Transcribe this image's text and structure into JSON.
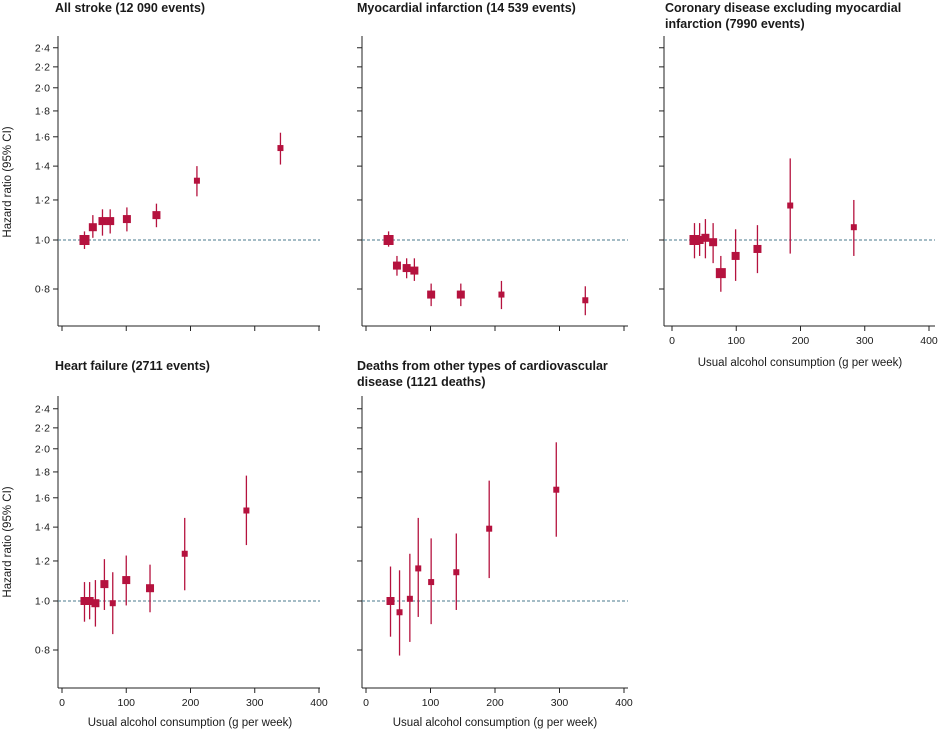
{
  "figure": {
    "colors": {
      "marker": "#b5123e",
      "reference_line": "#4a7a8c",
      "axis": "#222222"
    }
  },
  "y_axis_label": "Hazard ratio (95% CI)",
  "x_axis_label": "Usual alcohol consumption (g per week)",
  "chart_data": [
    {
      "id": "stroke",
      "type": "scatter",
      "title": "All stroke (12 090 events)",
      "ylabel": "Hazard ratio (95% CI)",
      "xlabel": "",
      "y_scale": "log",
      "ylim": [
        0.7,
        2.45
      ],
      "xlim": [
        0,
        400
      ],
      "y_ticks": [
        "0·8",
        "1·0",
        "1·2",
        "1·4",
        "1·6",
        "1·8",
        "2·0",
        "2·2",
        "2·4"
      ],
      "x_tick_labels": [],
      "reference_line": 1.0,
      "points": [
        {
          "x": 35,
          "hr": 1.0,
          "lo": 0.96,
          "hi": 1.04,
          "w": 3
        },
        {
          "x": 48,
          "hr": 1.06,
          "lo": 1.01,
          "hi": 1.12,
          "w": 2
        },
        {
          "x": 63,
          "hr": 1.09,
          "lo": 1.02,
          "hi": 1.15,
          "w": 2
        },
        {
          "x": 75,
          "hr": 1.09,
          "lo": 1.03,
          "hi": 1.15,
          "w": 2
        },
        {
          "x": 101,
          "hr": 1.1,
          "lo": 1.04,
          "hi": 1.16,
          "w": 2
        },
        {
          "x": 147,
          "hr": 1.12,
          "lo": 1.06,
          "hi": 1.18,
          "w": 2
        },
        {
          "x": 210,
          "hr": 1.31,
          "lo": 1.22,
          "hi": 1.4,
          "w": 1
        },
        {
          "x": 340,
          "hr": 1.52,
          "lo": 1.41,
          "hi": 1.63,
          "w": 1
        }
      ]
    },
    {
      "id": "mi",
      "type": "scatter",
      "title": "Myocardial infarction (14 539 events)",
      "ylabel": "",
      "xlabel": "",
      "y_scale": "log",
      "ylim": [
        0.7,
        2.45
      ],
      "xlim": [
        0,
        400
      ],
      "y_ticks": [
        "0·8",
        "1·0",
        "1·2",
        "1·4",
        "1·6",
        "1·8",
        "2·0",
        "2·2",
        "2·4"
      ],
      "x_tick_labels": [],
      "reference_line": 1.0,
      "points": [
        {
          "x": 35,
          "hr": 1.0,
          "lo": 0.97,
          "hi": 1.04,
          "w": 3
        },
        {
          "x": 48,
          "hr": 0.89,
          "lo": 0.85,
          "hi": 0.93,
          "w": 2
        },
        {
          "x": 63,
          "hr": 0.88,
          "lo": 0.84,
          "hi": 0.92,
          "w": 2
        },
        {
          "x": 75,
          "hr": 0.87,
          "lo": 0.83,
          "hi": 0.92,
          "w": 2
        },
        {
          "x": 101,
          "hr": 0.78,
          "lo": 0.74,
          "hi": 0.82,
          "w": 2
        },
        {
          "x": 147,
          "hr": 0.78,
          "lo": 0.74,
          "hi": 0.82,
          "w": 2
        },
        {
          "x": 210,
          "hr": 0.78,
          "lo": 0.73,
          "hi": 0.83,
          "w": 1
        },
        {
          "x": 340,
          "hr": 0.76,
          "lo": 0.71,
          "hi": 0.81,
          "w": 1
        }
      ]
    },
    {
      "id": "coronary",
      "type": "scatter",
      "title": "Coronary disease excluding myocardial infarction (7990 events)",
      "ylabel": "",
      "xlabel": "Usual alcohol consumption (g per week)",
      "y_scale": "log",
      "ylim": [
        0.7,
        2.45
      ],
      "xlim": [
        0,
        400
      ],
      "y_ticks": [
        "0·8",
        "1·0",
        "1·2",
        "1·4",
        "1·6",
        "1·8",
        "2·0",
        "2·2",
        "2·4"
      ],
      "x_ticks": [
        0,
        100,
        200,
        300,
        400
      ],
      "x_tick_labels": [
        "0",
        "100",
        "200",
        "300",
        "400"
      ],
      "reference_line": 1.0,
      "points": [
        {
          "x": 35,
          "hr": 1.0,
          "lo": 0.92,
          "hi": 1.08,
          "w": 3
        },
        {
          "x": 43,
          "hr": 1.0,
          "lo": 0.93,
          "hi": 1.08,
          "w": 2
        },
        {
          "x": 52,
          "hr": 1.01,
          "lo": 0.92,
          "hi": 1.1,
          "w": 2
        },
        {
          "x": 64,
          "hr": 0.99,
          "lo": 0.9,
          "hi": 1.08,
          "w": 2
        },
        {
          "x": 76,
          "hr": 0.86,
          "lo": 0.79,
          "hi": 0.93,
          "w": 3
        },
        {
          "x": 99,
          "hr": 0.93,
          "lo": 0.83,
          "hi": 1.05,
          "w": 2
        },
        {
          "x": 133,
          "hr": 0.96,
          "lo": 0.86,
          "hi": 1.07,
          "w": 2
        },
        {
          "x": 184,
          "hr": 1.17,
          "lo": 0.94,
          "hi": 1.45,
          "w": 1
        },
        {
          "x": 283,
          "hr": 1.06,
          "lo": 0.93,
          "hi": 1.2,
          "w": 1
        }
      ]
    },
    {
      "id": "hf",
      "type": "scatter",
      "title": "Heart failure (2711 events)",
      "ylabel": "Hazard ratio (95% CI)",
      "xlabel": "Usual alcohol consumption (g per week)",
      "y_scale": "log",
      "ylim": [
        0.7,
        2.45
      ],
      "xlim": [
        0,
        400
      ],
      "y_ticks": [
        "0·8",
        "1·0",
        "1·2",
        "1·4",
        "1·6",
        "1·8",
        "2·0",
        "2·2",
        "2·4"
      ],
      "x_ticks": [
        0,
        100,
        200,
        300,
        400
      ],
      "x_tick_labels": [
        "0",
        "100",
        "200",
        "300",
        "400"
      ],
      "reference_line": 1.0,
      "points": [
        {
          "x": 35,
          "hr": 1.0,
          "lo": 0.91,
          "hi": 1.09,
          "w": 2
        },
        {
          "x": 43,
          "hr": 1.0,
          "lo": 0.92,
          "hi": 1.09,
          "w": 2
        },
        {
          "x": 52,
          "hr": 0.99,
          "lo": 0.89,
          "hi": 1.1,
          "w": 2
        },
        {
          "x": 66,
          "hr": 1.08,
          "lo": 0.96,
          "hi": 1.21,
          "w": 2
        },
        {
          "x": 79,
          "hr": 0.99,
          "lo": 0.86,
          "hi": 1.14,
          "w": 1
        },
        {
          "x": 100,
          "hr": 1.1,
          "lo": 0.98,
          "hi": 1.23,
          "w": 2
        },
        {
          "x": 137,
          "hr": 1.06,
          "lo": 0.95,
          "hi": 1.18,
          "w": 2
        },
        {
          "x": 191,
          "hr": 1.24,
          "lo": 1.05,
          "hi": 1.46,
          "w": 1
        },
        {
          "x": 287,
          "hr": 1.51,
          "lo": 1.29,
          "hi": 1.77,
          "w": 1
        }
      ]
    },
    {
      "id": "othercvd",
      "type": "scatter",
      "title": "Deaths from other types of cardiovascular disease (1121 deaths)",
      "ylabel": "",
      "xlabel": "Usual alcohol consumption (g per week)",
      "y_scale": "log",
      "ylim": [
        0.7,
        2.45
      ],
      "xlim": [
        0,
        400
      ],
      "y_ticks": [
        "0·8",
        "1·0",
        "1·2",
        "1·4",
        "1·6",
        "1·8",
        "2·0",
        "2·2",
        "2·4"
      ],
      "x_ticks": [
        0,
        100,
        200,
        300,
        400
      ],
      "x_tick_labels": [
        "0",
        "100",
        "200",
        "300",
        "400"
      ],
      "reference_line": 1.0,
      "points": [
        {
          "x": 38,
          "hr": 1.0,
          "lo": 0.85,
          "hi": 1.17,
          "w": 2
        },
        {
          "x": 52,
          "hr": 0.95,
          "lo": 0.78,
          "hi": 1.15,
          "w": 1
        },
        {
          "x": 68,
          "hr": 1.01,
          "lo": 0.83,
          "hi": 1.24,
          "w": 1
        },
        {
          "x": 81,
          "hr": 1.16,
          "lo": 0.93,
          "hi": 1.46,
          "w": 1
        },
        {
          "x": 101,
          "hr": 1.09,
          "lo": 0.9,
          "hi": 1.33,
          "w": 1
        },
        {
          "x": 140,
          "hr": 1.14,
          "lo": 0.96,
          "hi": 1.36,
          "w": 1
        },
        {
          "x": 191,
          "hr": 1.39,
          "lo": 1.11,
          "hi": 1.73,
          "w": 1
        },
        {
          "x": 295,
          "hr": 1.66,
          "lo": 1.34,
          "hi": 2.06,
          "w": 1
        }
      ]
    }
  ]
}
